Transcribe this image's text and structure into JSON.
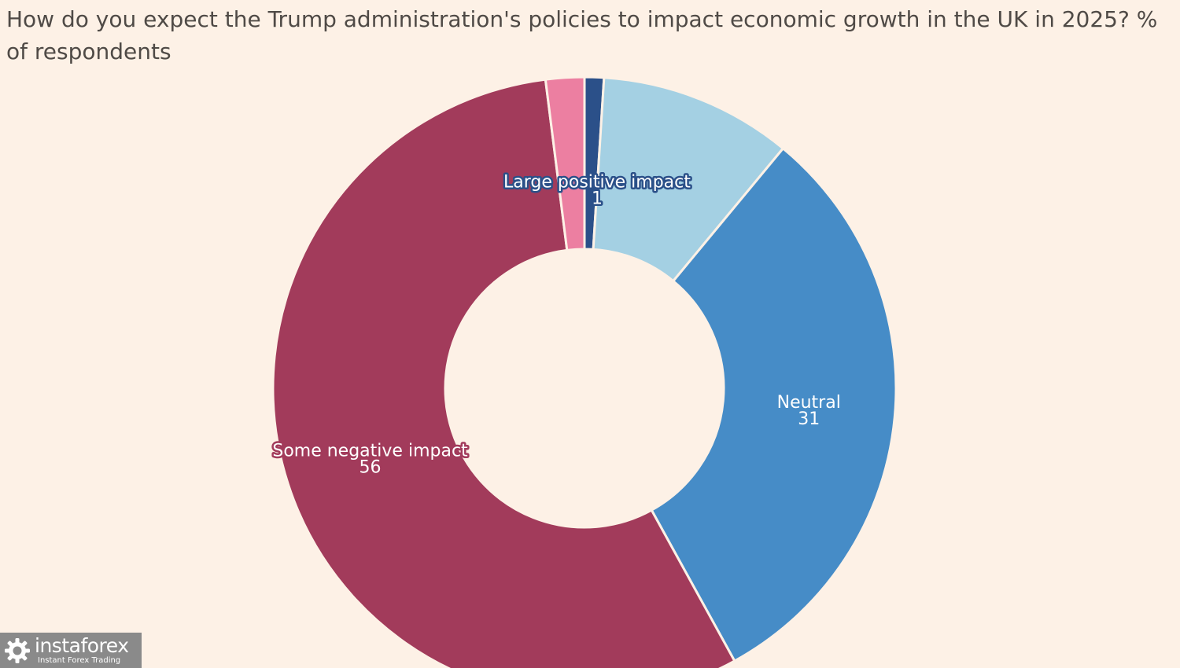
{
  "title": "How do you expect the Trump administration's policies to impact economic growth in the UK in 2025? % of respondents",
  "chart_data": {
    "type": "pie",
    "variant": "donut",
    "title": "How do you expect the Trump administration's policies to impact economic growth in the UK in 2025? % of respondents",
    "start": "12 o'clock",
    "direction": "clockwise",
    "slices": [
      {
        "label": "Large positive impact",
        "value": 1,
        "color": "#2b5089",
        "show_label": true
      },
      {
        "value": 10,
        "color": "#a4d0e3",
        "show_label": false
      },
      {
        "label": "Neutral",
        "value": 31,
        "color": "#468cc7",
        "show_label": true
      },
      {
        "label": "Some negative impact",
        "value": 56,
        "color": "#a23b5b",
        "show_label": true
      },
      {
        "value": 2,
        "color": "#ec7fa1",
        "show_label": false
      }
    ]
  },
  "watermark": {
    "name": "instaforex",
    "tagline": "Instant Forex Trading"
  }
}
